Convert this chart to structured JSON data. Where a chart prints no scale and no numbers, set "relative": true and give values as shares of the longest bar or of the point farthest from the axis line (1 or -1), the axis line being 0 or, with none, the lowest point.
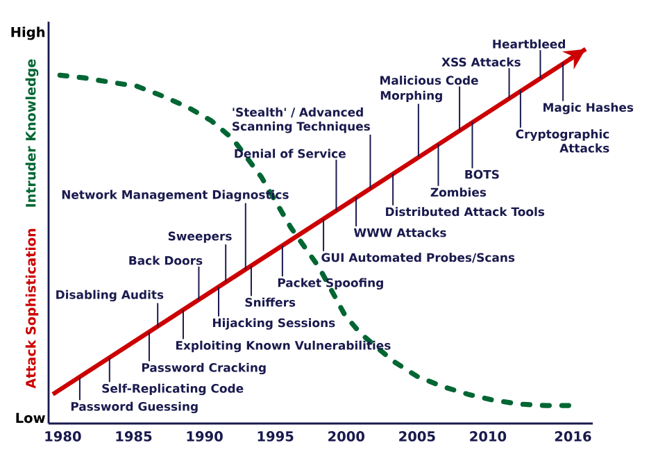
{
  "chart_data": {
    "type": "line",
    "relative": true,
    "xlim": [
      1979,
      2017.4
    ],
    "xticks": [
      1980,
      1985,
      1990,
      1995,
      2000,
      2005,
      2010,
      2016
    ],
    "marker": "none",
    "series": [
      {
        "name": "Attack Sophistication",
        "color": "#cc0000",
        "line_style": "solid",
        "x": [
          1979.3,
          2016.9
        ],
        "values": [
          0.078,
          1
        ]
      },
      {
        "name": "Intruder Knowledge",
        "color": "#006633",
        "line_style": "dashed",
        "x": [
          1979.8,
          1981.5,
          1983.4,
          1985.2,
          1987,
          1988.8,
          1990.5,
          1992,
          1994,
          1996.1,
          1998.1,
          1999.9,
          2001,
          2003.3,
          2005,
          2006.7,
          2008.6,
          2010.3,
          2012.2,
          2014.1,
          2016
        ],
        "values": [
          0.93,
          0.923,
          0.911,
          0.901,
          0.875,
          0.845,
          0.808,
          0.76,
          0.659,
          0.523,
          0.416,
          0.29,
          0.241,
          0.167,
          0.126,
          0.1,
          0.078,
          0.063,
          0.052,
          0.048,
          0.048
        ]
      }
    ],
    "annotations": [
      "High",
      "Low",
      {
        "text": "Password Guessing",
        "x": 1981.2,
        "y": 0.123
      },
      {
        "text": "Self-Replicating Code",
        "x": 1983.3,
        "y": 0.176
      },
      {
        "text": "Password Cracking",
        "x": 1986.1,
        "y": 0.243
      },
      {
        "text": "Disabling Audits",
        "x": 1986.7,
        "y": 0.257
      },
      {
        "text": "Exploiting Known Vulnerabilities",
        "x": 1988.5,
        "y": 0.303
      },
      {
        "text": "Back Doors",
        "x": 1989.6,
        "y": 0.33
      },
      {
        "text": "Hijacking Sessions",
        "x": 1991.0,
        "y": 0.364
      },
      {
        "text": "Sweepers",
        "x": 1991.5,
        "y": 0.378
      },
      {
        "text": "Network Management Diagnostics",
        "x": 1992.9,
        "y": 0.411
      },
      {
        "text": "Sniffers",
        "x": 1993.3,
        "y": 0.421
      },
      {
        "text": "Packet Spoofing",
        "x": 1995.5,
        "y": 0.474
      },
      {
        "text": "GUI Automated Probes/Scans",
        "x": 1998.4,
        "y": 0.547
      },
      {
        "text": "Denial of Service",
        "x": 1999.3,
        "y": 0.568
      },
      {
        "text": "'Stealth' / Advanced Scanning Techniques",
        "x": 2001.7,
        "y": 0.628
      },
      {
        "text": "WWW Attacks",
        "x": 2000.7,
        "y": 0.604
      },
      {
        "text": "Distributed Attack Tools",
        "x": 2003.3,
        "y": 0.667
      },
      {
        "text": "Morphing",
        "x": 2005.1,
        "y": 0.713
      },
      {
        "text": "Malicious Code",
        "x": 2008.0,
        "y": 0.781
      },
      {
        "text": "Zombies",
        "x": 2006.5,
        "y": 0.746
      },
      {
        "text": "BOTS",
        "x": 2008.9,
        "y": 0.805
      },
      {
        "text": "XSS Attacks",
        "x": 2011.5,
        "y": 0.868
      },
      {
        "text": "Cryptographic Attacks",
        "x": 2012.3,
        "y": 0.89
      },
      {
        "text": "Heartbleed",
        "x": 2013.7,
        "y": 0.921
      },
      {
        "text": "Magic Hashes",
        "x": 2015.3,
        "y": 0.963
      }
    ]
  }
}
